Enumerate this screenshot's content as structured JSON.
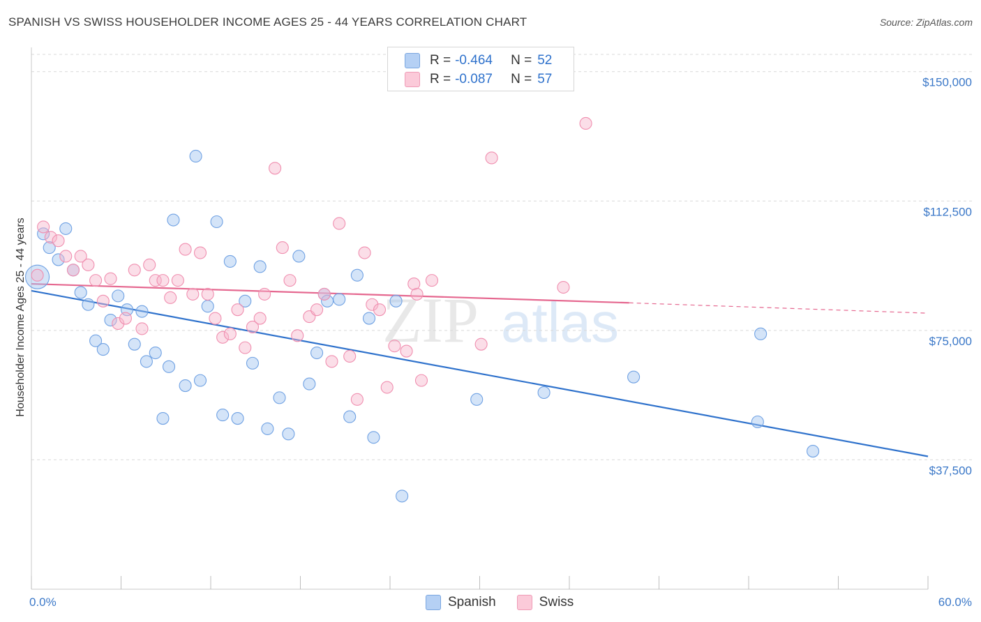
{
  "header": {
    "title": "SPANISH VS SWISS HOUSEHOLDER INCOME AGES 25 - 44 YEARS CORRELATION CHART",
    "source": "Source: ZipAtlas.com"
  },
  "legend": {
    "r_label": "R =",
    "n_label": "N =",
    "series": [
      {
        "name": "Spanish",
        "r": "-0.464",
        "n": "52",
        "color": "#6fa1e3"
      },
      {
        "name": "Swiss",
        "r": "-0.087",
        "n": "57",
        "color": "#f08eaf"
      }
    ]
  },
  "watermark": {
    "zip": "ZIP",
    "atlas": "atlas"
  },
  "chart_data": {
    "type": "scatter",
    "title": "SPANISH VS SWISS HOUSEHOLDER INCOME AGES 25 - 44 YEARS CORRELATION CHART",
    "xlabel": "",
    "ylabel": "Householder Income Ages 25 - 44 years",
    "xlim": [
      0,
      60
    ],
    "ylim": [
      0,
      155000
    ],
    "x_tick_labels": [
      "0.0%",
      "60.0%"
    ],
    "y_ticks": [
      37500,
      75000,
      112500,
      150000
    ],
    "y_tick_labels": [
      "$37,500",
      "$75,000",
      "$112,500",
      "$150,000"
    ],
    "grid": true,
    "series": [
      {
        "name": "Spanish",
        "color": "#6fa1e3",
        "trend": {
          "x0": 0,
          "y0": 86500,
          "x1": 60,
          "y1": 38500
        },
        "points": [
          [
            0.8,
            103000
          ],
          [
            1.2,
            99000
          ],
          [
            1.8,
            95500
          ],
          [
            2.3,
            104500
          ],
          [
            2.8,
            92500
          ],
          [
            3.3,
            86000
          ],
          [
            3.8,
            82500
          ],
          [
            4.3,
            72000
          ],
          [
            4.8,
            69500
          ],
          [
            5.3,
            78000
          ],
          [
            5.8,
            85000
          ],
          [
            6.4,
            81000
          ],
          [
            6.9,
            71000
          ],
          [
            7.4,
            80500
          ],
          [
            7.7,
            66000
          ],
          [
            8.3,
            68500
          ],
          [
            8.8,
            49500
          ],
          [
            9.2,
            64500
          ],
          [
            9.5,
            107000
          ],
          [
            10.3,
            59000
          ],
          [
            11.0,
            125500
          ],
          [
            11.3,
            60500
          ],
          [
            11.8,
            82000
          ],
          [
            12.4,
            106500
          ],
          [
            12.8,
            50500
          ],
          [
            13.3,
            95000
          ],
          [
            13.8,
            49500
          ],
          [
            14.3,
            83500
          ],
          [
            14.8,
            65500
          ],
          [
            15.3,
            93500
          ],
          [
            15.8,
            46500
          ],
          [
            16.6,
            55500
          ],
          [
            17.2,
            45000
          ],
          [
            17.9,
            96500
          ],
          [
            18.6,
            59500
          ],
          [
            19.1,
            68500
          ],
          [
            19.6,
            85500
          ],
          [
            19.8,
            83500
          ],
          [
            20.6,
            84000
          ],
          [
            21.3,
            50000
          ],
          [
            21.8,
            91000
          ],
          [
            22.6,
            78500
          ],
          [
            22.9,
            44000
          ],
          [
            24.4,
            83500
          ],
          [
            24.8,
            27000
          ],
          [
            29.8,
            55000
          ],
          [
            34.3,
            57000
          ],
          [
            40.3,
            61500
          ],
          [
            48.6,
            48500
          ],
          [
            48.8,
            74000
          ],
          [
            52.3,
            40000
          ],
          [
            0.4,
            90500
          ]
        ],
        "sizes": [
          1,
          1,
          1,
          1,
          1,
          1,
          1,
          1,
          1,
          1,
          1,
          1,
          1,
          1,
          1,
          1,
          1,
          1,
          1,
          1,
          1,
          1,
          1,
          1,
          1,
          1,
          1,
          1,
          1,
          1,
          1,
          1,
          1,
          1,
          1,
          1,
          1,
          1,
          1,
          1,
          1,
          1,
          1,
          1,
          1,
          1,
          1,
          1,
          1,
          1,
          1,
          3
        ]
      },
      {
        "name": "Swiss",
        "color": "#f08eaf",
        "trend": {
          "x0": 0,
          "y0": 88500,
          "x1": 40,
          "y1": 83000,
          "x_dash_end": 60,
          "y_dash_end": 80000
        },
        "points": [
          [
            0.8,
            105000
          ],
          [
            1.3,
            102000
          ],
          [
            1.8,
            101000
          ],
          [
            2.3,
            96500
          ],
          [
            2.8,
            92500
          ],
          [
            3.3,
            96500
          ],
          [
            3.8,
            94000
          ],
          [
            4.3,
            89500
          ],
          [
            4.8,
            83500
          ],
          [
            5.3,
            90000
          ],
          [
            5.8,
            77000
          ],
          [
            6.3,
            78500
          ],
          [
            6.9,
            92500
          ],
          [
            7.4,
            75500
          ],
          [
            7.9,
            94000
          ],
          [
            8.3,
            89500
          ],
          [
            8.8,
            89500
          ],
          [
            9.3,
            84500
          ],
          [
            9.8,
            89500
          ],
          [
            10.3,
            98500
          ],
          [
            10.8,
            85500
          ],
          [
            11.3,
            97500
          ],
          [
            11.8,
            85500
          ],
          [
            12.3,
            78500
          ],
          [
            12.8,
            73000
          ],
          [
            13.3,
            74000
          ],
          [
            13.8,
            81000
          ],
          [
            14.3,
            70000
          ],
          [
            14.8,
            76000
          ],
          [
            15.3,
            78500
          ],
          [
            15.6,
            85500
          ],
          [
            16.3,
            122000
          ],
          [
            16.8,
            99000
          ],
          [
            17.3,
            89500
          ],
          [
            17.8,
            73500
          ],
          [
            18.6,
            79000
          ],
          [
            19.1,
            81000
          ],
          [
            19.6,
            85500
          ],
          [
            20.1,
            66000
          ],
          [
            20.6,
            106000
          ],
          [
            21.3,
            67500
          ],
          [
            21.8,
            55000
          ],
          [
            22.3,
            97500
          ],
          [
            22.8,
            82500
          ],
          [
            23.3,
            81000
          ],
          [
            23.8,
            58500
          ],
          [
            24.3,
            70500
          ],
          [
            25.1,
            69000
          ],
          [
            25.6,
            88500
          ],
          [
            25.8,
            85500
          ],
          [
            26.1,
            60500
          ],
          [
            26.8,
            89500
          ],
          [
            30.1,
            71000
          ],
          [
            30.8,
            125000
          ],
          [
            35.6,
            87500
          ],
          [
            37.1,
            135000
          ],
          [
            0.4,
            91000
          ]
        ],
        "sizes": [
          1,
          1,
          1,
          1,
          1,
          1,
          1,
          1,
          1,
          1,
          1,
          1,
          1,
          1,
          1,
          1,
          1,
          1,
          1,
          1,
          1,
          1,
          1,
          1,
          1,
          1,
          1,
          1,
          1,
          1,
          1,
          1,
          1,
          1,
          1,
          1,
          1,
          1,
          1,
          1,
          1,
          1,
          1,
          1,
          1,
          1,
          1,
          1,
          1,
          1,
          1,
          1,
          1,
          1,
          1,
          1,
          1
        ]
      }
    ]
  }
}
